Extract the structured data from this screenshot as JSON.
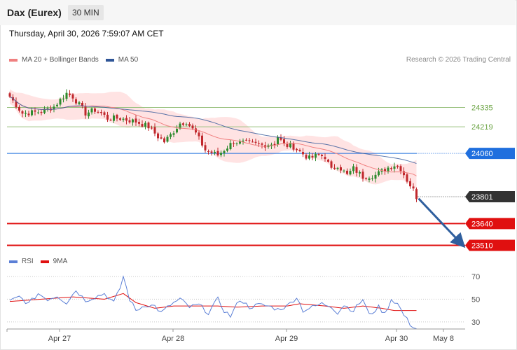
{
  "header": {
    "instrument": "Dax (Eurex)",
    "timeframe": "30 MIN"
  },
  "timestamp": "Thursday, April 30, 2026 7:59:07 AM CET",
  "copyright": "Research © 2026 Trading Central",
  "colors": {
    "ma20": "#f08080",
    "ma50": "#2f5597",
    "bull": "#2e8b2e",
    "bear": "#c0282d",
    "level_green": "#9ac27f",
    "pivot": "#1f6fde",
    "support": "#e01010",
    "rsi": "#5b7fd6",
    "rsi_ma": "#e01010",
    "arrow": "#2f5f9e",
    "band": "#ffdede"
  },
  "chart_data": [
    {
      "type": "candlestick",
      "legend": [
        {
          "name": "MA 20 + Bollinger Bands",
          "color": "#f08080"
        },
        {
          "name": "MA 50",
          "color": "#2f5597"
        }
      ],
      "ylim": [
        23470,
        24580
      ],
      "x_ticks": [
        "Apr 27",
        "Apr 28",
        "Apr 29",
        "Apr 30",
        "May 8"
      ],
      "bars": 98,
      "levels": [
        {
          "label": "24335",
          "value": 24335,
          "style": "resistance"
        },
        {
          "label": "24219",
          "value": 24219,
          "style": "resistance"
        },
        {
          "label": "24060",
          "value": 24060,
          "style": "pivot"
        },
        {
          "label": "23801",
          "value": 23801,
          "style": "last"
        },
        {
          "label": "23640",
          "value": 23640,
          "style": "support"
        },
        {
          "label": "23510",
          "value": 23510,
          "style": "support"
        }
      ],
      "projection": {
        "from": 23790,
        "to": 23510
      },
      "anchors": [
        [
          0,
          24400
        ],
        [
          4,
          24300
        ],
        [
          10,
          24310
        ],
        [
          14,
          24340
        ],
        [
          18,
          24420
        ],
        [
          20,
          24400
        ],
        [
          24,
          24300
        ],
        [
          27,
          24320
        ],
        [
          29,
          24300
        ],
        [
          31,
          24270
        ],
        [
          35,
          24270
        ],
        [
          40,
          24250
        ],
        [
          44,
          24220
        ],
        [
          47,
          24160
        ],
        [
          49,
          24130
        ],
        [
          51,
          24170
        ],
        [
          54,
          24240
        ],
        [
          56,
          24250
        ],
        [
          59,
          24180
        ],
        [
          62,
          24080
        ],
        [
          66,
          24050
        ],
        [
          71,
          24130
        ],
        [
          76,
          24120
        ],
        [
          80,
          24110
        ],
        [
          84,
          24120
        ],
        [
          85,
          24160
        ],
        [
          87,
          24110
        ],
        [
          90,
          24100
        ],
        [
          92,
          24070
        ],
        [
          95,
          24030
        ],
        [
          98,
          24050
        ],
        [
          100,
          24040
        ],
        [
          102,
          23960
        ],
        [
          104,
          23990
        ],
        [
          107,
          23930
        ],
        [
          109,
          23970
        ],
        [
          112,
          23920
        ],
        [
          116,
          23930
        ],
        [
          120,
          23975
        ],
        [
          122,
          23990
        ],
        [
          124,
          23970
        ],
        [
          126,
          23900
        ],
        [
          128,
          23840
        ],
        [
          129,
          23800
        ]
      ]
    },
    {
      "type": "line",
      "legend": [
        {
          "name": "RSI",
          "color": "#5b7fd6"
        },
        {
          "name": "9MA",
          "color": "#e01010"
        }
      ],
      "ylim": [
        25,
        78
      ],
      "y_ticks": [
        70,
        50,
        30
      ],
      "series_rsi_anchors": [
        [
          0,
          48
        ],
        [
          3,
          52
        ],
        [
          6,
          46
        ],
        [
          9,
          55
        ],
        [
          12,
          50
        ],
        [
          15,
          53
        ],
        [
          18,
          47
        ],
        [
          21,
          58
        ],
        [
          24,
          49
        ],
        [
          27,
          52
        ],
        [
          30,
          55
        ],
        [
          33,
          47
        ],
        [
          35,
          60
        ],
        [
          36,
          70
        ],
        [
          38,
          50
        ],
        [
          40,
          40
        ],
        [
          43,
          45
        ],
        [
          46,
          44
        ],
        [
          48,
          38
        ],
        [
          51,
          45
        ],
        [
          54,
          50
        ],
        [
          57,
          43
        ],
        [
          60,
          45
        ],
        [
          63,
          38
        ],
        [
          66,
          50
        ],
        [
          68,
          40
        ],
        [
          70,
          35
        ],
        [
          73,
          50
        ],
        [
          76,
          43
        ],
        [
          79,
          45
        ],
        [
          82,
          44
        ],
        [
          85,
          41
        ],
        [
          88,
          44
        ],
        [
          91,
          52
        ],
        [
          93,
          40
        ],
        [
          96,
          43
        ],
        [
          99,
          46
        ],
        [
          102,
          44
        ],
        [
          104,
          38
        ],
        [
          106,
          45
        ],
        [
          109,
          40
        ],
        [
          112,
          50
        ],
        [
          114,
          36
        ],
        [
          117,
          43
        ],
        [
          119,
          37
        ],
        [
          121,
          50
        ],
        [
          123,
          46
        ],
        [
          125,
          36
        ],
        [
          127,
          28
        ],
        [
          129,
          24
        ]
      ],
      "series_ma_anchors": [
        [
          0,
          48
        ],
        [
          10,
          50
        ],
        [
          20,
          52
        ],
        [
          30,
          50
        ],
        [
          36,
          55
        ],
        [
          40,
          47
        ],
        [
          46,
          42
        ],
        [
          52,
          44
        ],
        [
          60,
          44
        ],
        [
          66,
          44
        ],
        [
          72,
          43
        ],
        [
          80,
          44
        ],
        [
          88,
          44
        ],
        [
          92,
          46
        ],
        [
          100,
          44
        ],
        [
          106,
          42
        ],
        [
          112,
          44
        ],
        [
          118,
          42
        ],
        [
          122,
          40
        ],
        [
          126,
          40
        ],
        [
          129,
          40
        ]
      ]
    }
  ]
}
